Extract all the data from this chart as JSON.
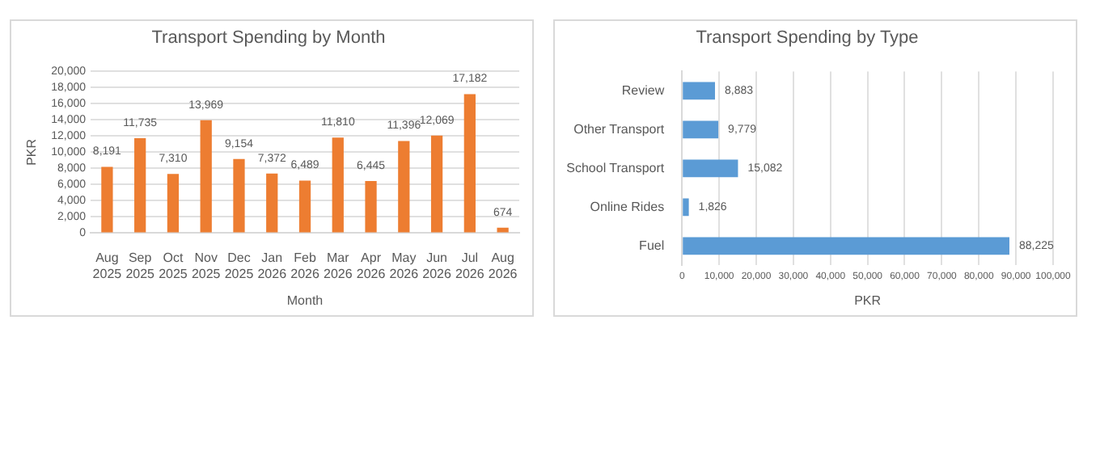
{
  "chart_data": [
    {
      "type": "bar",
      "title": "Transport Spending by Month",
      "xlabel": "Month",
      "ylabel": "PKR",
      "categories": [
        "Aug 2025",
        "Sep 2025",
        "Oct 2025",
        "Nov 2025",
        "Dec 2025",
        "Jan 2026",
        "Feb 2026",
        "Mar 2026",
        "Apr 2026",
        "May 2026",
        "Jun 2026",
        "Jul 2026",
        "Aug 2026"
      ],
      "values": [
        8191,
        11735,
        7310,
        13969,
        9154,
        7372,
        6489,
        11810,
        6445,
        11396,
        12069,
        17182,
        674
      ],
      "value_labels": [
        "8,191",
        "11,735",
        "7,310",
        "13,969",
        "9,154",
        "7,372",
        "6,489",
        "11,810",
        "6,445",
        "11,396",
        "12,069",
        "17,182",
        "674"
      ],
      "color": "#ed7d31",
      "ylim": [
        0,
        20000
      ],
      "yticks": [
        0,
        {
          "value": 2000,
          "label": "2,000"
        },
        {
          "value": 4000,
          "label": "4,000"
        },
        {
          "value": 6000,
          "label": "6,000"
        },
        {
          "value": 8000,
          "label": "8,000"
        },
        {
          "value": 10000,
          "label": "10,000"
        },
        {
          "value": 12000,
          "label": "12,000"
        },
        {
          "value": 14000,
          "label": "14,000"
        },
        {
          "value": 16000,
          "label": "16,000"
        },
        {
          "value": 18000,
          "label": "18,000"
        },
        {
          "value": 20000,
          "label": "20,000"
        }
      ],
      "grid": "y"
    },
    {
      "type": "bar",
      "orientation": "horizontal",
      "title": "Transport Spending by Type",
      "xlabel": "PKR",
      "categories": [
        "Review",
        "Other Transport",
        "School Transport",
        "Online Rides",
        "Fuel"
      ],
      "values": [
        8883,
        9779,
        15082,
        1826,
        88225
      ],
      "value_labels": [
        "8,883",
        "9,779",
        "15,082",
        "1,826",
        "88,225"
      ],
      "color": "#5b9bd5",
      "xlim": [
        0,
        100000
      ],
      "xticks": [
        0,
        {
          "value": 10000,
          "label": "10,000"
        },
        {
          "value": 20000,
          "label": "20,000"
        },
        {
          "value": 30000,
          "label": "30,000"
        },
        {
          "value": 40000,
          "label": "40,000"
        },
        {
          "value": 50000,
          "label": "50,000"
        },
        {
          "value": 60000,
          "label": "60,000"
        },
        {
          "value": 70000,
          "label": "70,000"
        },
        {
          "value": 80000,
          "label": "80,000"
        },
        {
          "value": 90000,
          "label": "90,000"
        },
        {
          "value": 100000,
          "label": "100,000"
        }
      ],
      "grid": "x"
    }
  ]
}
